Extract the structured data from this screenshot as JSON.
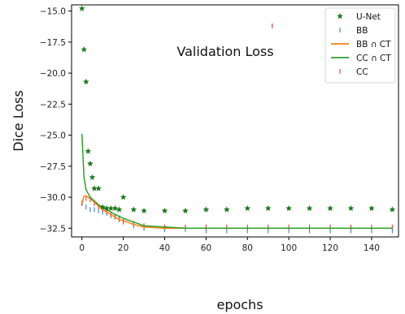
{
  "chart_data": {
    "type": "line",
    "title": "",
    "annotation": "Validation Loss",
    "xlabel": "epochs",
    "ylabel": "Dice Loss",
    "xlim": [
      -5,
      153
    ],
    "ylim": [
      -33.2,
      -14.5
    ],
    "xticks": [
      0,
      20,
      40,
      60,
      80,
      100,
      120,
      140
    ],
    "yticks": [
      -15.0,
      -17.5,
      -20.0,
      -22.5,
      -25.0,
      -27.5,
      -30.0,
      -32.5
    ],
    "grid": false,
    "legend_position": "top-right",
    "series": [
      {
        "name": "U-Net",
        "marker": "star",
        "color": "#1f7a1f",
        "x": [
          0,
          1,
          2,
          3,
          4,
          5,
          6,
          8,
          10,
          12,
          14,
          16,
          18,
          20,
          25,
          30,
          40,
          50,
          60,
          70,
          80,
          90,
          100,
          110,
          120,
          130,
          140,
          150
        ],
        "y": [
          -14.8,
          -18.1,
          -20.7,
          -26.3,
          -27.3,
          -28.4,
          -29.3,
          -29.3,
          -30.8,
          -30.9,
          -30.9,
          -30.9,
          -31.0,
          -30.0,
          -31.0,
          -31.1,
          -31.1,
          -31.1,
          -31.0,
          -31.0,
          -30.9,
          -30.9,
          -30.9,
          -30.9,
          -30.9,
          -30.9,
          -30.9,
          -31.0
        ]
      },
      {
        "name": "BB",
        "marker": "vline",
        "color": "#1f77b4",
        "x": [
          0,
          2,
          4,
          6,
          8,
          10,
          12,
          14,
          16,
          18,
          20,
          25,
          30,
          40,
          50,
          60,
          70,
          80,
          90,
          100,
          110,
          120,
          130,
          140,
          150
        ],
        "y": [
          -30.5,
          -30.8,
          -31.0,
          -31.0,
          -31.1,
          -31.2,
          -31.3,
          -31.5,
          -31.6,
          -31.8,
          -32.0,
          -32.3,
          -32.5,
          -32.6,
          -32.6,
          -32.7,
          -32.7,
          -32.7,
          -32.7,
          -32.7,
          -32.7,
          -32.7,
          -32.7,
          -32.7,
          -32.7
        ]
      },
      {
        "name": "BB ∩ CT",
        "marker": "line",
        "color": "#ff7f0e",
        "x": [
          0,
          1,
          2,
          4,
          6,
          8,
          10,
          12,
          14,
          16,
          18,
          20,
          22,
          25,
          30,
          40,
          50,
          60,
          70,
          80,
          90,
          100,
          110,
          120,
          130,
          140,
          150
        ],
        "y": [
          -30.5,
          -29.9,
          -29.9,
          -30.1,
          -30.4,
          -30.7,
          -31.0,
          -31.2,
          -31.4,
          -31.6,
          -31.8,
          -31.9,
          -32.0,
          -32.2,
          -32.4,
          -32.5,
          -32.5,
          -32.5,
          -32.5,
          -32.5,
          -32.5,
          -32.5,
          -32.5,
          -32.5,
          -32.5,
          -32.5,
          -32.5
        ]
      },
      {
        "name": "CC ∩ CT",
        "marker": "line",
        "color": "#2ca02c",
        "x": [
          0,
          1,
          2,
          3,
          4,
          6,
          8,
          10,
          12,
          15,
          20,
          25,
          30,
          40,
          50,
          60,
          70,
          80,
          90,
          100,
          110,
          120,
          130,
          140,
          150
        ],
        "y": [
          -24.9,
          -28.4,
          -29.4,
          -29.7,
          -30.0,
          -30.3,
          -30.6,
          -30.8,
          -31.0,
          -31.3,
          -31.7,
          -32.0,
          -32.3,
          -32.4,
          -32.5,
          -32.5,
          -32.5,
          -32.5,
          -32.5,
          -32.5,
          -32.5,
          -32.5,
          -32.5,
          -32.5,
          -32.5
        ]
      },
      {
        "name": "CC",
        "marker": "vline",
        "color": "#d62728",
        "x": [
          0,
          2,
          4,
          6,
          8,
          10,
          12,
          14,
          16,
          18,
          20,
          25,
          30,
          40,
          50,
          60,
          70,
          80,
          90,
          92,
          100,
          110,
          120,
          130,
          140,
          150
        ],
        "y": [
          -30.5,
          -30.1,
          -30.2,
          -30.5,
          -30.8,
          -31.0,
          -31.2,
          -31.4,
          -31.6,
          -31.8,
          -31.9,
          -32.1,
          -32.3,
          -32.4,
          -32.4,
          -32.4,
          -32.4,
          -32.4,
          -32.4,
          -16.2,
          -32.4,
          -32.4,
          -32.4,
          -32.4,
          -32.4,
          -32.4
        ]
      }
    ]
  }
}
